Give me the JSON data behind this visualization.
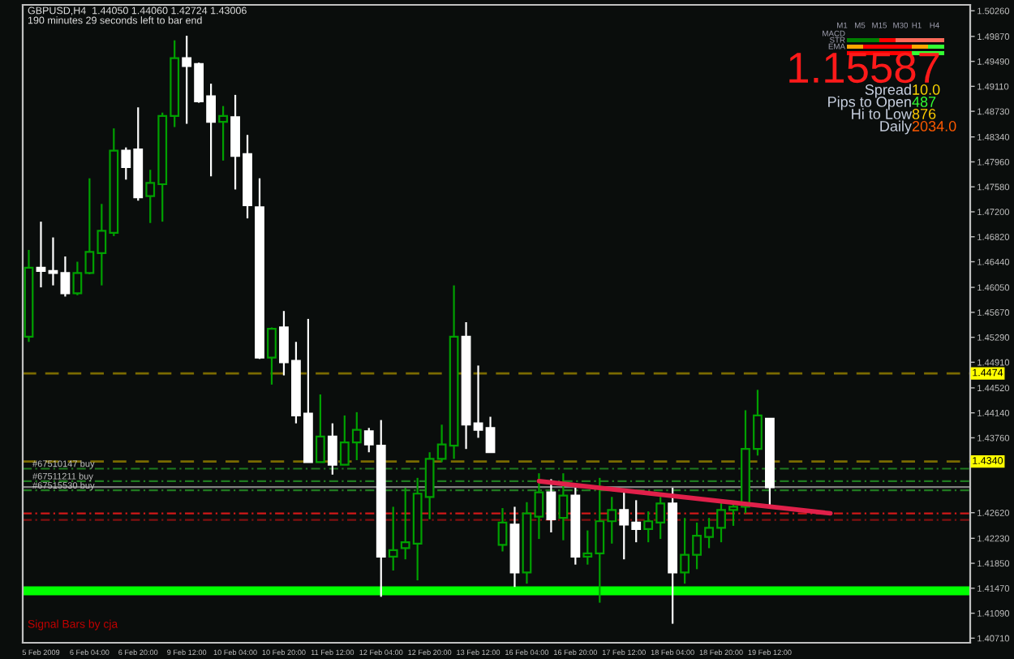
{
  "chart_data": {
    "type": "candlestick",
    "categories": [
      null,
      "5 Feb 2009",
      null,
      null,
      null,
      "6 Feb 04:00",
      null,
      null,
      null,
      "6 Feb 20:00",
      null,
      null,
      null,
      "9 Feb 12:00",
      null,
      null,
      null,
      "10 Feb 04:00",
      null,
      null,
      null,
      "10 Feb 20:00",
      null,
      null,
      null,
      "11 Feb 12:00",
      null,
      null,
      null,
      "12 Feb 04:00",
      null,
      null,
      null,
      "12 Feb 20:00",
      null,
      null,
      null,
      "13 Feb 12:00",
      null,
      null,
      null,
      "16 Feb 04:00",
      null,
      null,
      null,
      "16 Feb 20:00",
      null,
      null,
      null,
      "17 Feb 12:00",
      null,
      null,
      null,
      "18 Feb 04:00",
      null,
      null,
      null,
      "18 Feb 20:00",
      null,
      null,
      null,
      "19 Feb 12:00",
      null,
      null,
      null,
      null,
      null,
      null,
      null,
      null,
      null,
      null,
      null,
      null,
      null,
      null,
      null,
      null
    ],
    "ohlc": [
      [
        1.453,
        1.4662,
        1.4522,
        1.4635
      ],
      [
        1.4635,
        1.4705,
        1.4605,
        1.463
      ],
      [
        1.463,
        1.4681,
        1.4608,
        1.4627
      ],
      [
        1.4627,
        1.4652,
        1.4591,
        1.4596
      ],
      [
        1.4596,
        1.4644,
        1.4593,
        1.4627
      ],
      [
        1.4627,
        1.4771,
        1.4625,
        1.4659
      ],
      [
        1.4657,
        1.4732,
        1.4608,
        1.4691
      ],
      [
        1.4688,
        1.4847,
        1.4683,
        1.4813
      ],
      [
        1.4813,
        1.4818,
        1.4769,
        1.4788
      ],
      [
        1.4815,
        1.4879,
        1.4737,
        1.4742
      ],
      [
        1.4744,
        1.4784,
        1.4703,
        1.4764
      ],
      [
        1.4762,
        1.4871,
        1.4705,
        1.4866
      ],
      [
        1.4866,
        1.4981,
        1.4849,
        1.4954
      ],
      [
        1.4954,
        1.4988,
        1.4854,
        1.4942
      ],
      [
        1.4945,
        1.4947,
        1.4886,
        1.4888
      ],
      [
        1.4896,
        1.4915,
        1.4774,
        1.4857
      ],
      [
        1.4857,
        1.4881,
        1.4798,
        1.4866
      ],
      [
        1.4864,
        1.4898,
        1.4754,
        1.4805
      ],
      [
        1.4808,
        1.4837,
        1.471,
        1.473
      ],
      [
        1.4727,
        1.4771,
        1.4496,
        1.4498
      ],
      [
        1.4498,
        1.4544,
        1.4457,
        1.4542
      ],
      [
        1.4544,
        1.4569,
        1.4471,
        1.4491
      ],
      [
        1.4493,
        1.4522,
        1.4398,
        1.441
      ],
      [
        1.4413,
        1.4557,
        1.4339,
        1.4339
      ],
      [
        1.4339,
        1.4442,
        1.4339,
        1.4378
      ],
      [
        1.4378,
        1.4398,
        1.432,
        1.4335
      ],
      [
        1.4335,
        1.441,
        1.4335,
        1.4369
      ],
      [
        1.4369,
        1.4415,
        1.4342,
        1.4388
      ],
      [
        1.4386,
        1.4391,
        1.4354,
        1.4366
      ],
      [
        1.4364,
        1.4403,
        1.4134,
        1.4195
      ],
      [
        1.4195,
        1.4271,
        1.4174,
        1.4205
      ],
      [
        1.4208,
        1.43,
        1.4191,
        1.4217
      ],
      [
        1.4215,
        1.4315,
        1.4159,
        1.4291
      ],
      [
        1.4286,
        1.4354,
        1.4252,
        1.4344
      ],
      [
        1.4344,
        1.4396,
        1.4339,
        1.4366
      ],
      [
        1.4364,
        1.4608,
        1.4344,
        1.453
      ],
      [
        1.453,
        1.4552,
        1.4359,
        1.4396
      ],
      [
        1.4398,
        1.4486,
        1.4376,
        1.4388
      ],
      [
        1.4391,
        1.4408,
        1.4354,
        1.4354
      ],
      [
        1.4213,
        1.4269,
        1.4203,
        1.4247
      ],
      [
        1.4244,
        1.4271,
        1.4149,
        1.4171
      ],
      [
        1.4171,
        1.4278,
        1.4154,
        1.4261
      ],
      [
        1.4256,
        1.4322,
        1.4222,
        1.4293
      ],
      [
        1.4293,
        1.4313,
        1.4232,
        1.4252
      ],
      [
        1.4254,
        1.4322,
        1.422,
        1.4288
      ],
      [
        1.4288,
        1.43,
        1.4183,
        1.4195
      ],
      [
        1.4195,
        1.4235,
        1.4183,
        1.42
      ],
      [
        1.42,
        1.4315,
        1.4125,
        1.4249
      ],
      [
        1.4249,
        1.4286,
        1.4215,
        1.4266
      ],
      [
        1.4266,
        1.4298,
        1.4191,
        1.4244
      ],
      [
        1.4247,
        1.4281,
        1.4217,
        1.4237
      ],
      [
        1.4237,
        1.4264,
        1.4217,
        1.4249
      ],
      [
        1.4247,
        1.4286,
        1.4222,
        1.4276
      ],
      [
        1.4276,
        1.43,
        1.4093,
        1.4171
      ],
      [
        1.4171,
        1.4254,
        1.4154,
        1.4198
      ],
      [
        1.4198,
        1.4247,
        1.4176,
        1.4227
      ],
      [
        1.4225,
        1.4254,
        1.4208,
        1.4239
      ],
      [
        1.4239,
        1.4281,
        1.4217,
        1.4266
      ],
      [
        1.4266,
        1.4278,
        1.4242,
        1.4271
      ],
      [
        1.4271,
        1.4418,
        1.4261,
        1.4359
      ],
      [
        1.4359,
        1.4449,
        1.4349,
        1.441
      ],
      [
        1.4405,
        1.4406,
        1.42724,
        1.43006
      ],
      null,
      null,
      null,
      null,
      null,
      null,
      null,
      null,
      null,
      null,
      null,
      null,
      null,
      null,
      null,
      null
    ],
    "colors": [
      "#00a000",
      "#ffffff",
      "#ffffff",
      "#ffffff",
      "#00a000",
      "#00a000",
      "#00a000",
      "#00a000",
      "#ffffff",
      "#ffffff",
      "#00a000",
      "#00a000",
      "#00a000",
      "#ffffff",
      "#ffffff",
      "#ffffff",
      "#00a000",
      "#ffffff",
      "#ffffff",
      "#ffffff",
      "#00a000",
      "#ffffff",
      "#ffffff",
      "#ffffff",
      "#00a000",
      "#ffffff",
      "#00a000",
      "#00a000",
      "#ffffff",
      "#ffffff",
      "#00a000",
      "#00a000",
      "#00a000",
      "#00a000",
      "#00a000",
      "#00a000",
      "#ffffff",
      "#ffffff",
      "#ffffff",
      "#00a000",
      "#ffffff",
      "#00a000",
      "#00a000",
      "#ffffff",
      "#00a000",
      "#ffffff",
      "#00a000",
      "#00a000",
      "#00a000",
      "#ffffff",
      "#ffffff",
      "#00a000",
      "#00a000",
      "#ffffff",
      "#00a000",
      "#00a000",
      "#00a000",
      "#00a000",
      "#00a000",
      "#00a000",
      "#00a000",
      "#ffffff",
      null,
      null,
      null,
      null,
      null,
      null,
      null,
      null,
      null,
      null,
      null,
      null,
      null,
      null,
      null,
      null
    ],
    "series": [
      {
        "type": "line",
        "color": "#e0204a",
        "values": [
          null,
          null,
          null,
          null,
          null,
          null,
          null,
          null,
          null,
          null,
          null,
          null,
          null,
          null,
          null,
          null,
          null,
          null,
          null,
          null,
          null,
          null,
          null,
          null,
          null,
          null,
          null,
          null,
          null,
          null,
          null,
          null,
          null,
          null,
          null,
          null,
          null,
          null,
          null,
          null,
          null,
          null,
          1.431,
          null,
          null,
          null,
          null,
          null,
          null,
          null,
          null,
          null,
          null,
          null,
          null,
          null,
          null,
          null,
          null,
          null,
          null,
          null,
          null,
          null,
          null,
          null,
          1.4261,
          null,
          null,
          null,
          null,
          null,
          null,
          null,
          null,
          null,
          null,
          null
        ]
      }
    ],
    "ylim": [
      1.4064,
      1.5035
    ],
    "yticks": [
      {
        "value": 1.4071,
        "label": "1.40710"
      },
      {
        "value": 1.4109,
        "label": "1.41090"
      },
      {
        "value": 1.4147,
        "label": "1.41470"
      },
      {
        "value": 1.4185,
        "label": "1.41850"
      },
      {
        "value": 1.4223,
        "label": "1.42230"
      },
      {
        "value": 1.4262,
        "label": "1.42620"
      },
      {
        "value": 1.4376,
        "label": "1.43760"
      },
      {
        "value": 1.4414,
        "label": "1.44140"
      },
      {
        "value": 1.4452,
        "label": "1.44520"
      },
      {
        "value": 1.4491,
        "label": "1.44910"
      },
      {
        "value": 1.4529,
        "label": "1.45290"
      },
      {
        "value": 1.4567,
        "label": "1.45670"
      },
      {
        "value": 1.4605,
        "label": "1.46050"
      },
      {
        "value": 1.4644,
        "label": "1.46440"
      },
      {
        "value": 1.4682,
        "label": "1.46820"
      },
      {
        "value": 1.472,
        "label": "1.47200"
      },
      {
        "value": 1.4758,
        "label": "1.47580"
      },
      {
        "value": 1.4796,
        "label": "1.47960"
      },
      {
        "value": 1.4834,
        "label": "1.48340"
      },
      {
        "value": 1.4873,
        "label": "1.48730"
      },
      {
        "value": 1.4911,
        "label": "1.49110"
      },
      {
        "value": 1.4949,
        "label": "1.49490"
      },
      {
        "value": 1.4987,
        "label": "1.49870"
      },
      {
        "value": 1.5026,
        "label": "1.50260"
      }
    ],
    "ref_lines": [
      {
        "axis": "y",
        "value": 1.4474,
        "label": "1.4474",
        "color": "#7a6a00",
        "line_style": "dashed"
      },
      {
        "axis": "y",
        "value": 1.434,
        "label": "1.4340",
        "color": "#7a6a00",
        "line_style": "dashed"
      },
      {
        "axis": "y",
        "value": 1.4329,
        "label": "#67510147 buy",
        "color": "#1f7a1f",
        "line_style": "dashed"
      },
      {
        "axis": "y",
        "value": 1.431,
        "label": "#67511211 buy",
        "color": "#1f7a1f",
        "line_style": "dashed"
      },
      {
        "axis": "y",
        "value": 1.4301,
        "label": null,
        "color": "#808080",
        "line_style": "solid"
      },
      {
        "axis": "y",
        "value": 1.4296,
        "label": "#67515530 buy",
        "color": "#1f7a1f",
        "line_style": "dashed"
      },
      {
        "axis": "y",
        "value": 1.4261,
        "label": null,
        "color": "#d01818",
        "line_style": "dashed"
      },
      {
        "axis": "y",
        "value": 1.4251,
        "label": null,
        "color": "#801010",
        "line_style": "dashed"
      },
      {
        "axis": "y",
        "value": 1.4143,
        "label": null,
        "color": "#00ff00",
        "line_style": "solid"
      }
    ],
    "annotations": [
      "GBPUSD,H4  1.44050 1.44060 1.42724 1.43006",
      "190 minutes 29 seconds left to bar end",
      "Signal Bars by cja",
      "M1",
      "M5",
      "M15",
      "M30",
      "H1",
      "H4",
      "MACD",
      "STR",
      "EMA",
      "1.15587",
      "Spread",
      "10.0",
      "Pips to Open",
      "487",
      "Hi to Low",
      "876",
      "Daily",
      "2034.0"
    ],
    "grid": false
  }
}
